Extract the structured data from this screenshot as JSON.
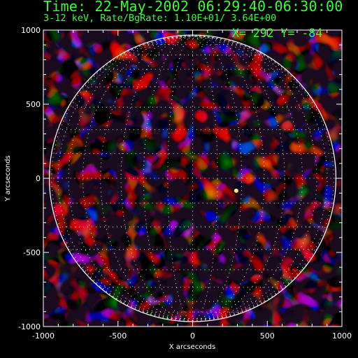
{
  "header": {
    "title": "Time: 22-May-2002 06:29:40-06:30:00",
    "subtitle": "3-12 keV, Rate/BgRate:  1.10E+01/  3.64E+00",
    "cursor": "X=  292 Y=  -84"
  },
  "axes": {
    "x_label": "X arcseconds",
    "y_label": "Y arcseconds",
    "x_ticks": [
      "-1000",
      "-500",
      "0",
      "500",
      "1000"
    ],
    "y_ticks": [
      "1000",
      "500",
      "0",
      "-500",
      "-1000"
    ],
    "x_range": [
      -1000,
      1000
    ],
    "y_range": [
      -1000,
      1000
    ]
  },
  "image": {
    "limb_radius_arcsec": 960,
    "grid_spacing_deg": 10,
    "colormap": "red-purple",
    "source_xy_arcsec": [
      292,
      -84
    ]
  },
  "colors": {
    "background": "#000000",
    "text": "#33ff33",
    "axes": "#ffffff",
    "red": "#b81a12",
    "purple": "#6a1aa6"
  }
}
